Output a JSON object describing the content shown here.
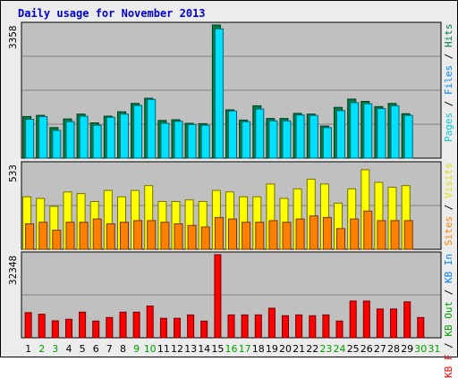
{
  "title": "Daily usage for November 2013",
  "chart_data": {
    "type": "bar",
    "categories": [
      "1",
      "2",
      "3",
      "4",
      "5",
      "6",
      "7",
      "8",
      "9",
      "10",
      "11",
      "12",
      "13",
      "14",
      "15",
      "16",
      "17",
      "18",
      "19",
      "20",
      "21",
      "22",
      "23",
      "24",
      "25",
      "26",
      "27",
      "28",
      "29",
      "30",
      "31"
    ],
    "weekend_days": [
      "2",
      "3",
      "9",
      "10",
      "16",
      "17",
      "23",
      "24",
      "30",
      "31"
    ],
    "panels": [
      {
        "name": "hits-files-pages",
        "y_max": 3358,
        "y_max_label": "3358",
        "right_label": [
          {
            "text": "Pages",
            "color": "#00cccc"
          },
          {
            "text": " / ",
            "color": "#000000"
          },
          {
            "text": "Files",
            "color": "#0080ff"
          },
          {
            "text": " / ",
            "color": "#000000"
          },
          {
            "text": "Hits",
            "color": "#008040"
          }
        ],
        "series": [
          {
            "name": "Hits",
            "color": "#008040",
            "values": [
              1050,
              1080,
              770,
              990,
              1110,
              890,
              1060,
              1170,
              1380,
              1510,
              950,
              970,
              880,
              870,
              3358,
              1220,
              960,
              1320,
              1000,
              1000,
              1130,
              1110,
              810,
              1280,
              1490,
              1430,
              1300,
              1380,
              1120,
              null,
              null
            ]
          },
          {
            "name": "Files",
            "color": "#00e0ff",
            "values": [
              980,
              1050,
              700,
              920,
              1060,
              830,
              1030,
              1110,
              1330,
              1480,
              880,
              930,
              850,
              830,
              3260,
              1190,
              920,
              1240,
              940,
              940,
              1090,
              1080,
              770,
              1200,
              1400,
              1370,
              1250,
              1320,
              1080,
              null,
              null
            ]
          }
        ]
      },
      {
        "name": "visits-sites",
        "y_max": 533,
        "y_max_label": "533",
        "right_label": [
          {
            "text": "Sites",
            "color": "#ff8000"
          },
          {
            "text": " / ",
            "color": "#000000"
          },
          {
            "text": "Visits",
            "color": "#e0e000"
          }
        ],
        "series": [
          {
            "name": "Visits",
            "color": "#ffff00",
            "values": [
              330,
              320,
              270,
              360,
              350,
              300,
              370,
              330,
              370,
              400,
              300,
              300,
              310,
              300,
              370,
              360,
              330,
              330,
              410,
              320,
              380,
              440,
              410,
              290,
              380,
              500,
              420,
              390,
              400,
              null,
              null
            ]
          },
          {
            "name": "Sites",
            "color": "#ff8000",
            "values": [
              160,
              170,
              120,
              170,
              170,
              190,
              160,
              170,
              180,
              180,
              170,
              160,
              150,
              140,
              200,
              190,
              170,
              170,
              180,
              170,
              190,
              210,
              200,
              130,
              190,
              240,
              180,
              180,
              180,
              null,
              null
            ]
          }
        ]
      },
      {
        "name": "kbytes",
        "y_max": 32348,
        "y_max_label": "32348",
        "right_label": [
          {
            "text": "KB F",
            "color": "#ff0000"
          },
          {
            "text": " / ",
            "color": "#000000"
          },
          {
            "text": "KB Out",
            "color": "#00a000"
          },
          {
            "text": " / ",
            "color": "#000000"
          },
          {
            "text": "KB In",
            "color": "#0080ff"
          }
        ],
        "series": [
          {
            "name": "KB F",
            "color": "#ff0000",
            "values": [
              9800,
              9200,
              6600,
              7200,
              10000,
              6500,
              7900,
              10000,
              10000,
              12400,
              7600,
              7600,
              8900,
              6500,
              32348,
              8900,
              8900,
              8900,
              11500,
              8600,
              8900,
              8600,
              8900,
              6500,
              14300,
              14300,
              11200,
              11200,
              14000,
              7900,
              null
            ]
          }
        ]
      }
    ]
  }
}
